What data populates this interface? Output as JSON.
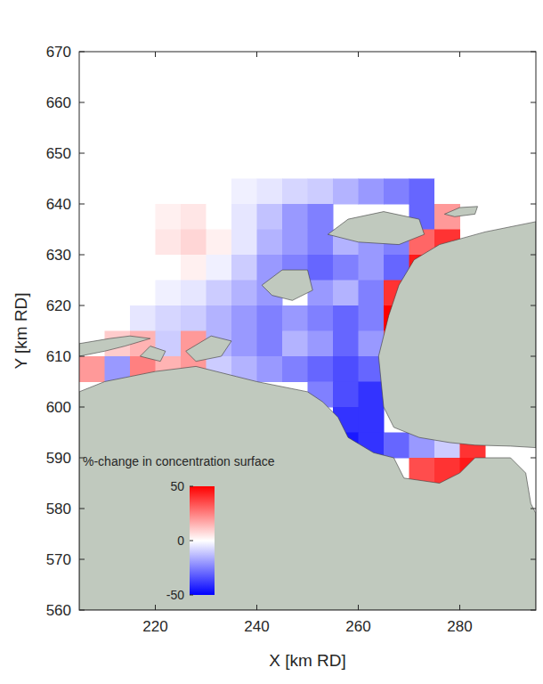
{
  "chart_data": {
    "type": "heatmap",
    "xlabel": "X [km RD]",
    "ylabel": "Y [km RD]",
    "xlim": [
      205,
      295
    ],
    "ylim": [
      560,
      670
    ],
    "xticks": [
      220,
      240,
      260,
      280
    ],
    "yticks": [
      560,
      570,
      580,
      590,
      600,
      610,
      620,
      630,
      640,
      650,
      660,
      670
    ],
    "colorbar": {
      "title": "%-change in concentration surface",
      "range": [
        -50,
        50
      ],
      "ticks": [
        -50,
        0,
        50
      ]
    },
    "x": [
      207.5,
      212.5,
      217.5,
      222.5,
      227.5,
      232.5,
      237.5,
      242.5,
      247.5,
      252.5,
      257.5,
      262.5,
      267.5,
      272.5,
      277.5,
      282.5,
      287.5,
      292.5
    ],
    "y": [
      642.5,
      637.5,
      632.5,
      627.5,
      622.5,
      617.5,
      612.5,
      607.5,
      602.5,
      597.5,
      592.5,
      587.5
    ],
    "cells": [
      [
        0,
        0,
        0,
        0,
        0,
        0,
        -3,
        -5,
        -8,
        -10,
        -15,
        -20,
        -25,
        -30,
        0,
        0,
        0,
        0
      ],
      [
        0,
        0,
        0,
        3,
        5,
        0,
        -5,
        -12,
        -20,
        -25,
        null,
        null,
        null,
        -30,
        20,
        null,
        null,
        null
      ],
      [
        0,
        0,
        0,
        5,
        8,
        3,
        -5,
        -15,
        -20,
        -25,
        -15,
        -20,
        -25,
        30,
        40,
        null,
        null,
        null
      ],
      [
        0,
        0,
        0,
        0,
        3,
        -3,
        -10,
        -20,
        -25,
        -30,
        -25,
        -20,
        -30,
        45,
        null,
        null,
        null,
        null
      ],
      [
        0,
        0,
        0,
        -3,
        -5,
        -10,
        -15,
        -20,
        null,
        -20,
        -15,
        -25,
        40,
        null,
        null,
        null,
        null,
        null
      ],
      [
        0,
        0,
        -5,
        -8,
        -10,
        -15,
        -20,
        -25,
        -20,
        -25,
        -30,
        -25,
        50,
        null,
        null,
        null,
        null,
        null
      ],
      [
        null,
        10,
        15,
        -10,
        20,
        -15,
        -20,
        -25,
        -15,
        -20,
        -30,
        -20,
        35,
        null,
        null,
        null,
        null,
        null
      ],
      [
        20,
        -20,
        25,
        15,
        20,
        -10,
        -15,
        -20,
        -25,
        -30,
        -35,
        -30,
        null,
        null,
        null,
        null,
        null,
        null
      ],
      [
        null,
        null,
        null,
        null,
        null,
        null,
        null,
        null,
        null,
        -25,
        -35,
        -40,
        null,
        null,
        null,
        null,
        null,
        null
      ],
      [
        null,
        null,
        null,
        null,
        null,
        null,
        null,
        null,
        null,
        null,
        -40,
        -40,
        null,
        null,
        null,
        null,
        null,
        null
      ],
      [
        null,
        null,
        null,
        null,
        null,
        null,
        null,
        null,
        null,
        null,
        -45,
        -40,
        -30,
        -20,
        -10,
        40,
        null,
        null
      ],
      [
        null,
        null,
        null,
        null,
        null,
        null,
        null,
        null,
        null,
        null,
        null,
        null,
        null,
        35,
        40,
        45,
        null,
        null
      ]
    ]
  }
}
